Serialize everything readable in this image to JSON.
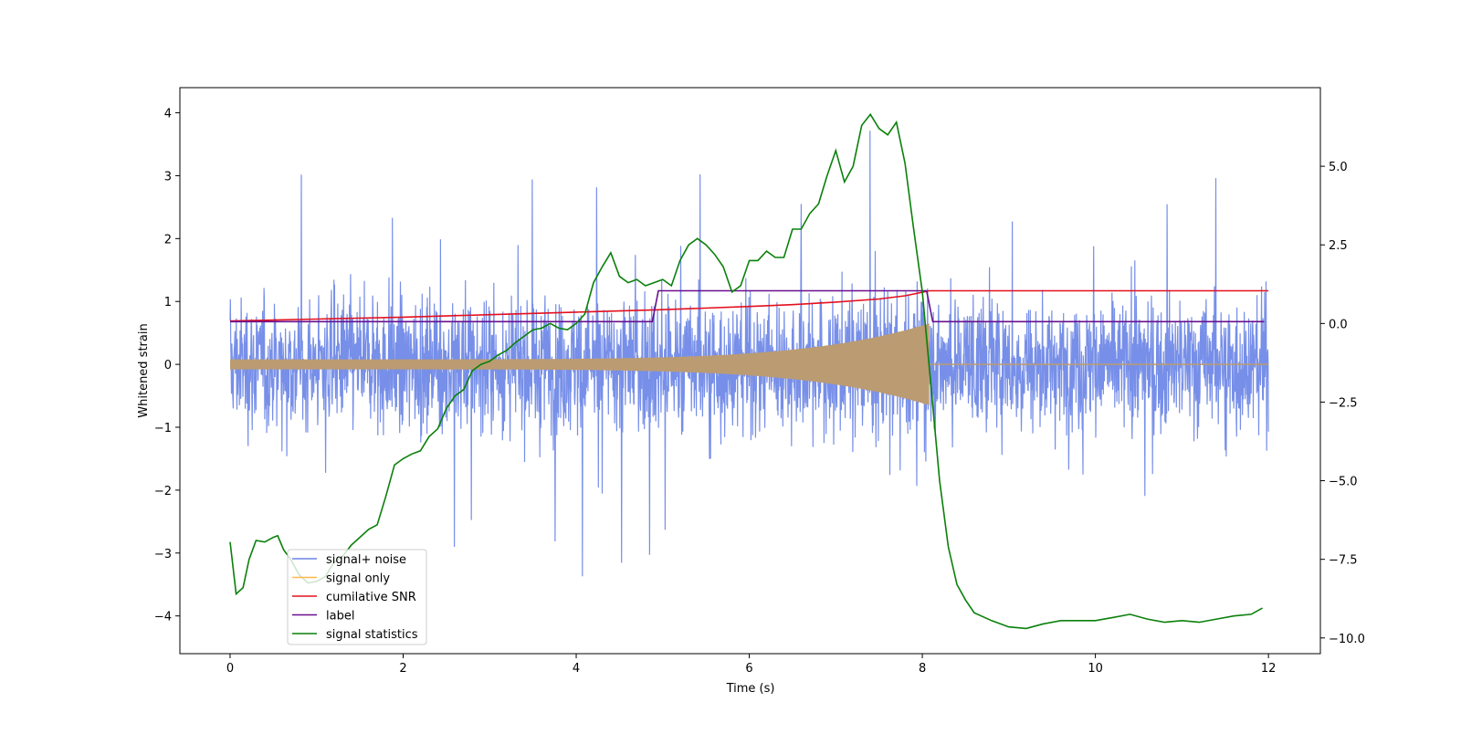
{
  "chart_data": {
    "type": "line",
    "xlabel": "Time (s)",
    "ylabel": "Whitened strain",
    "ylabel_right": "",
    "xlim": [
      -0.58,
      12.6
    ],
    "ylim": [
      -4.6,
      4.4
    ],
    "ylim_right": [
      -10.5,
      7.5
    ],
    "x_ticks": [
      0,
      2,
      4,
      6,
      8,
      10,
      12
    ],
    "y_ticks": [
      -4,
      -3,
      -2,
      -1,
      0,
      1,
      2,
      3,
      4
    ],
    "y_ticks_right": [
      -10.0,
      -7.5,
      -5.0,
      -2.5,
      0.0,
      2.5,
      5.0
    ],
    "legend_location": "lower-left",
    "legend": [
      "signal+ noise",
      "signal only",
      "cumilative SNR",
      "label",
      "signal statistics"
    ],
    "colors": {
      "noise": "#6b86e6",
      "signal": "#ffb84d",
      "signal_blend": "#bb9b72",
      "snr": "#e3101e",
      "label": "#6a0f8e",
      "stat": "#0a800a"
    },
    "series": [
      {
        "name": "signal+ noise",
        "axis": "left",
        "description": "whitened noisy strain, approx. amplitude 1.5-4, sampled densely over 0-12 s",
        "sample_rate_hz": 512,
        "duration_s": 12,
        "max_y": 4.0,
        "min_y": -4.15
      },
      {
        "name": "signal only",
        "axis": "left",
        "chirp": {
          "t_merge": 8.08,
          "amp_start": 0.08,
          "amp_peak": 0.65,
          "post_merge_amp": 0.0
        }
      },
      {
        "name": "cumilative SNR",
        "axis": "left",
        "x": [
          0,
          1,
          2,
          3,
          4,
          5,
          6,
          6.5,
          7,
          7.5,
          7.8,
          8.08,
          9,
          10,
          11,
          12
        ],
        "y": [
          0.69,
          0.72,
          0.75,
          0.79,
          0.83,
          0.87,
          0.92,
          0.95,
          0.99,
          1.04,
          1.09,
          1.17,
          1.17,
          1.17,
          1.17,
          1.17
        ]
      },
      {
        "name": "label",
        "axis": "left",
        "x": [
          0,
          4.88,
          4.95,
          8.05,
          8.12,
          11.95
        ],
        "y": [
          0.68,
          0.68,
          1.17,
          1.17,
          0.68,
          0.68
        ]
      },
      {
        "name": "signal statistics",
        "axis": "right",
        "x": [
          0,
          0.07,
          0.15,
          0.22,
          0.3,
          0.4,
          0.5,
          0.55,
          0.62,
          0.7,
          0.8,
          0.9,
          1.0,
          1.1,
          1.2,
          1.3,
          1.4,
          1.5,
          1.6,
          1.7,
          1.8,
          1.9,
          2.0,
          2.1,
          2.2,
          2.3,
          2.4,
          2.5,
          2.6,
          2.7,
          2.8,
          2.9,
          3.0,
          3.1,
          3.2,
          3.3,
          3.4,
          3.5,
          3.6,
          3.7,
          3.8,
          3.9,
          4.0,
          4.1,
          4.2,
          4.3,
          4.4,
          4.5,
          4.6,
          4.7,
          4.8,
          4.9,
          5.0,
          5.1,
          5.2,
          5.3,
          5.4,
          5.5,
          5.6,
          5.7,
          5.8,
          5.9,
          6.0,
          6.1,
          6.2,
          6.3,
          6.4,
          6.5,
          6.6,
          6.7,
          6.8,
          6.9,
          7.0,
          7.1,
          7.2,
          7.3,
          7.4,
          7.5,
          7.6,
          7.7,
          7.8,
          7.9,
          8.0,
          8.1,
          8.2,
          8.3,
          8.4,
          8.5,
          8.6,
          8.8,
          9.0,
          9.2,
          9.4,
          9.6,
          9.8,
          10.0,
          10.2,
          10.4,
          10.6,
          10.8,
          11.0,
          11.2,
          11.4,
          11.6,
          11.8,
          11.93
        ],
        "y": [
          -6.95,
          -8.6,
          -8.4,
          -7.5,
          -6.9,
          -6.95,
          -6.8,
          -6.75,
          -7.2,
          -7.5,
          -8.0,
          -8.25,
          -8.2,
          -8.05,
          -7.6,
          -7.4,
          -7.05,
          -6.8,
          -6.55,
          -6.4,
          -5.5,
          -4.5,
          -4.3,
          -4.15,
          -4.05,
          -3.6,
          -3.35,
          -2.7,
          -2.3,
          -2.1,
          -1.5,
          -1.3,
          -1.2,
          -1.0,
          -0.85,
          -0.6,
          -0.4,
          -0.2,
          -0.15,
          0.0,
          -0.15,
          -0.2,
          0.0,
          0.3,
          1.3,
          1.8,
          2.25,
          1.5,
          1.3,
          1.4,
          1.2,
          1.3,
          1.4,
          1.2,
          2.0,
          2.5,
          2.7,
          2.5,
          2.2,
          1.8,
          1.0,
          1.2,
          2.0,
          2.0,
          2.3,
          2.1,
          2.1,
          3.0,
          3.0,
          3.5,
          3.8,
          4.7,
          5.5,
          4.5,
          5.0,
          6.3,
          6.65,
          6.2,
          6.0,
          6.4,
          5.1,
          3.0,
          1.0,
          -2.0,
          -5.0,
          -7.1,
          -8.3,
          -8.8,
          -9.2,
          -9.45,
          -9.65,
          -9.7,
          -9.55,
          -9.45,
          -9.45,
          -9.45,
          -9.35,
          -9.25,
          -9.4,
          -9.5,
          -9.45,
          -9.5,
          -9.4,
          -9.3,
          -9.25,
          -9.05
        ]
      }
    ]
  }
}
